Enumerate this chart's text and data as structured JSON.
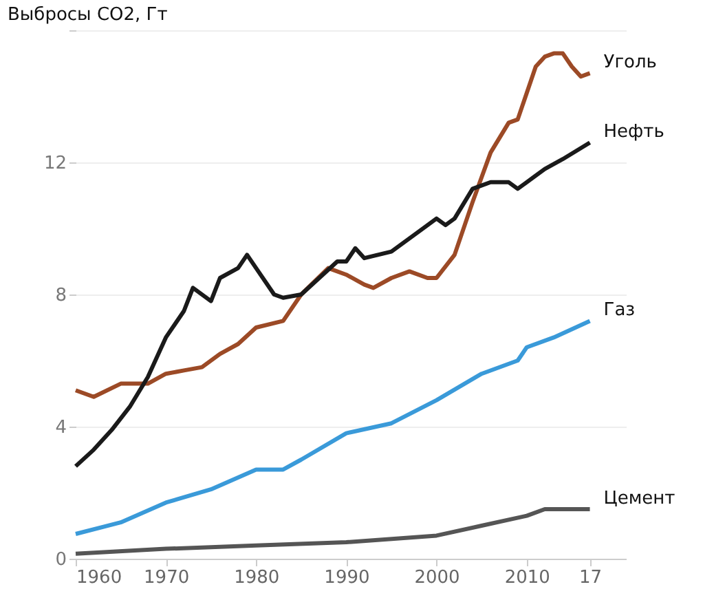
{
  "chart_data": {
    "type": "line",
    "ylabel": "Выбросы CO2, Гт",
    "xlim": [
      1960,
      2021
    ],
    "ylim": [
      0,
      16
    ],
    "xticks": [
      1960,
      1970,
      1980,
      1990,
      2000,
      2010,
      {
        "value": 2017,
        "label": "17"
      }
    ],
    "yticks": [
      0,
      4,
      8,
      12,
      {
        "value": 16,
        "label": null
      }
    ],
    "grid": "y",
    "legend": false,
    "marker": "none",
    "line_style": "solid",
    "series": [
      {
        "name": "Уголь",
        "color": "#9c4a26",
        "x": [
          1960,
          1962,
          1965,
          1968,
          1970,
          1972,
          1974,
          1976,
          1978,
          1980,
          1983,
          1985,
          1988,
          1990,
          1992,
          1993,
          1995,
          1997,
          1999,
          2000,
          2002,
          2004,
          2006,
          2008,
          2009,
          2010,
          2011,
          2012,
          2013,
          2014,
          2015,
          2016,
          2017
        ],
        "values": [
          5.1,
          4.9,
          5.3,
          5.3,
          5.6,
          5.7,
          5.8,
          6.2,
          6.5,
          7.0,
          7.2,
          8.0,
          8.8,
          8.6,
          8.3,
          8.2,
          8.5,
          8.7,
          8.5,
          8.5,
          9.2,
          10.8,
          12.3,
          13.2,
          13.3,
          14.1,
          14.9,
          15.2,
          15.3,
          15.3,
          14.9,
          14.6,
          14.7
        ]
      },
      {
        "name": "Нефть",
        "color": "#1a1a1a",
        "x": [
          1960,
          1962,
          1964,
          1966,
          1968,
          1970,
          1972,
          1973,
          1975,
          1976,
          1978,
          1979,
          1980,
          1982,
          1983,
          1985,
          1987,
          1989,
          1990,
          1991,
          1992,
          1995,
          1998,
          2000,
          2001,
          2002,
          2004,
          2006,
          2008,
          2009,
          2010,
          2012,
          2014,
          2017
        ],
        "values": [
          2.8,
          3.3,
          3.9,
          4.6,
          5.5,
          6.7,
          7.5,
          8.2,
          7.8,
          8.5,
          8.8,
          9.2,
          8.8,
          8.0,
          7.9,
          8.0,
          8.5,
          9.0,
          9.0,
          9.4,
          9.1,
          9.3,
          9.9,
          10.3,
          10.1,
          10.3,
          11.2,
          11.4,
          11.4,
          11.2,
          11.4,
          11.8,
          12.1,
          12.6
        ]
      },
      {
        "name": "Газ",
        "color": "#3a9ad9",
        "x": [
          1960,
          1965,
          1970,
          1975,
          1980,
          1983,
          1985,
          1990,
          1995,
          2000,
          2005,
          2009,
          2010,
          2013,
          2017
        ],
        "values": [
          0.75,
          1.1,
          1.7,
          2.1,
          2.7,
          2.7,
          3.0,
          3.8,
          4.1,
          4.8,
          5.6,
          6.0,
          6.4,
          6.7,
          7.2
        ]
      },
      {
        "name": "Цемент",
        "color": "#555555",
        "x": [
          1960,
          1970,
          1980,
          1990,
          2000,
          2005,
          2010,
          2012,
          2017
        ],
        "values": [
          0.15,
          0.3,
          0.4,
          0.5,
          0.7,
          1.0,
          1.3,
          1.5,
          1.5
        ]
      }
    ]
  }
}
